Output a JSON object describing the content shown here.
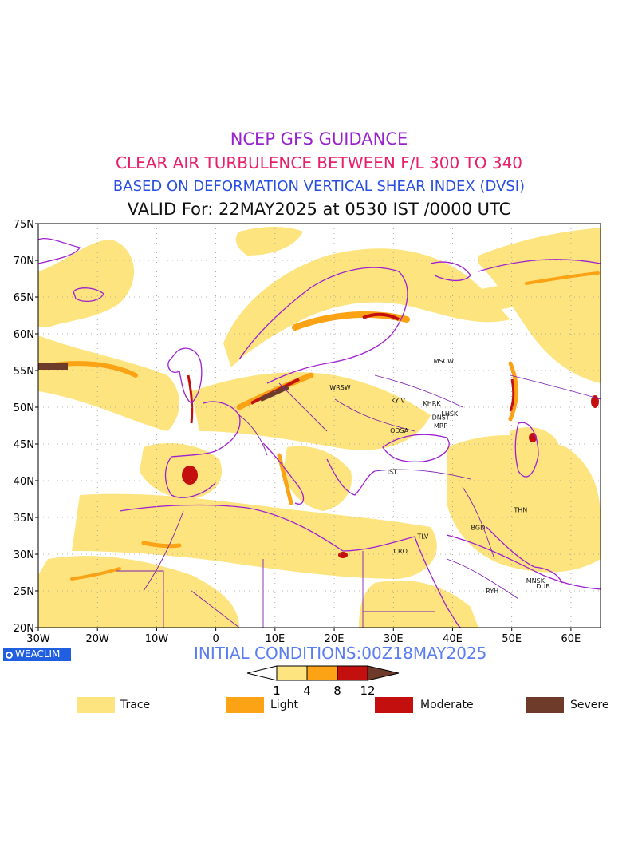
{
  "titles": {
    "line1": "NCEP GFS GUIDANCE",
    "line2": "CLEAR AIR TURBULENCE BETWEEN F/L 300 TO 340",
    "line3": "BASED ON DEFORMATION VERTICAL SHEAR INDEX (DVSI)",
    "line4": "VALID For: 22MAY2025 at 0530 IST /0000 UTC"
  },
  "map": {
    "lon_range": [
      -30,
      65
    ],
    "lat_range": [
      20,
      75
    ],
    "lat_ticks": [
      "75N",
      "70N",
      "65N",
      "60N",
      "55N",
      "50N",
      "45N",
      "40N",
      "35N",
      "30N",
      "25N",
      "20N"
    ],
    "lon_ticks": [
      "30W",
      "20W",
      "10W",
      "0",
      "10E",
      "20E",
      "30E",
      "40E",
      "50E",
      "60E"
    ],
    "cities": [
      {
        "label": "MSCW",
        "lon": 38.5,
        "lat": 56.0
      },
      {
        "label": "WRSW",
        "lon": 21.0,
        "lat": 52.4
      },
      {
        "label": "KYIV",
        "lon": 30.8,
        "lat": 50.6
      },
      {
        "label": "KHRK",
        "lon": 36.5,
        "lat": 50.2
      },
      {
        "label": "LHSK",
        "lon": 39.5,
        "lat": 48.8
      },
      {
        "label": "DNST",
        "lon": 38.0,
        "lat": 48.3
      },
      {
        "label": "MRP",
        "lon": 38.0,
        "lat": 47.2
      },
      {
        "label": "ODSA",
        "lon": 31.0,
        "lat": 46.5
      },
      {
        "label": "IST",
        "lon": 29.8,
        "lat": 40.9
      },
      {
        "label": "THN",
        "lon": 51.5,
        "lat": 35.7
      },
      {
        "label": "BGD",
        "lon": 44.3,
        "lat": 33.3
      },
      {
        "label": "TLV",
        "lon": 35.0,
        "lat": 32.1
      },
      {
        "label": "CRO",
        "lon": 31.2,
        "lat": 30.1
      },
      {
        "label": "MNSK",
        "lon": 54.0,
        "lat": 26.1
      },
      {
        "label": "DUB",
        "lon": 55.3,
        "lat": 25.3
      },
      {
        "label": "RYH",
        "lon": 46.7,
        "lat": 24.7
      }
    ],
    "colors": {
      "trace": "#fde47f",
      "light": "#fca315",
      "moderate": "#c40f0f",
      "severe": "#6e3b2b",
      "coast": "#a020d0",
      "border": "#8020b0"
    }
  },
  "footer": {
    "brand": "WEACLIM",
    "initial_conditions": "INITIAL CONDITIONS:00Z18MAY2025"
  },
  "colorbar": {
    "ticks": [
      "1",
      "4",
      "8",
      "12"
    ]
  },
  "legend": {
    "items": [
      {
        "label": "Trace",
        "color": "#fde47f"
      },
      {
        "label": "Light",
        "color": "#fca315"
      },
      {
        "label": "Moderate",
        "color": "#c40f0f"
      },
      {
        "label": "Severe",
        "color": "#6e3b2b"
      }
    ]
  }
}
